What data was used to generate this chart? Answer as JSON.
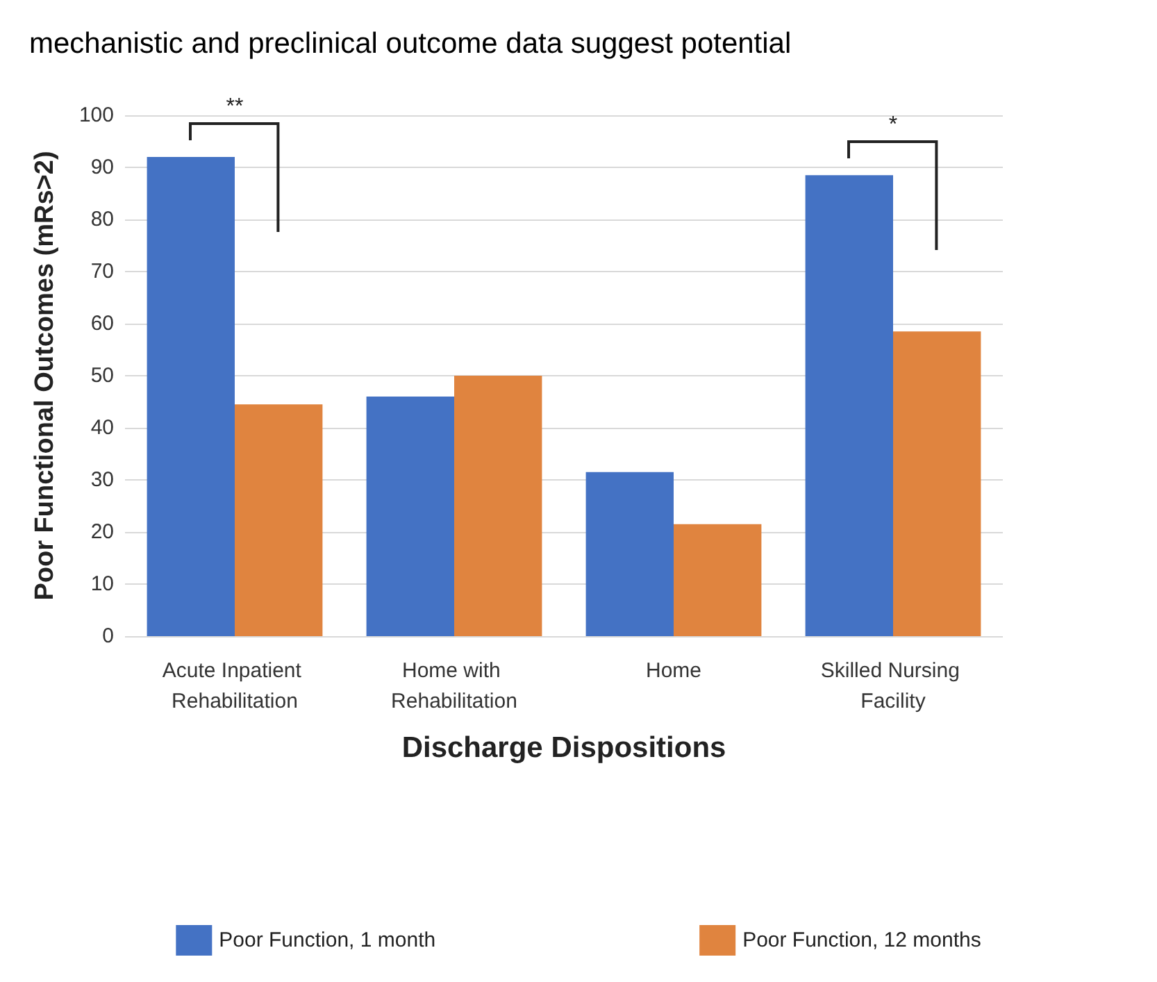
{
  "chart_data": {
    "type": "bar",
    "title": "mechanistic and preclinical outcome data suggest potential",
    "categories": [
      "Acute Inpatient Rehabilitation",
      "Home with Rehabilitation",
      "Home",
      "Skilled Nursing Facility"
    ],
    "series": [
      {
        "name": "Poor Function, 1 month",
        "color": "#4472c4",
        "values": [
          92,
          46,
          31.5,
          88.5
        ]
      },
      {
        "name": "Poor Function, 12 months",
        "color": "#e0843f",
        "values": [
          44.5,
          50,
          21.5,
          58.5
        ]
      }
    ],
    "xlabel": "Discharge Dispositions",
    "ylabel": "Poor Functional Outcomes (mRs>2)",
    "ylim": [
      0,
      100
    ],
    "yticks": [
      0,
      10,
      20,
      30,
      40,
      50,
      60,
      70,
      80,
      90,
      100
    ],
    "grid": "y",
    "legend": "bottom",
    "annotations": [
      "**",
      "*"
    ]
  }
}
